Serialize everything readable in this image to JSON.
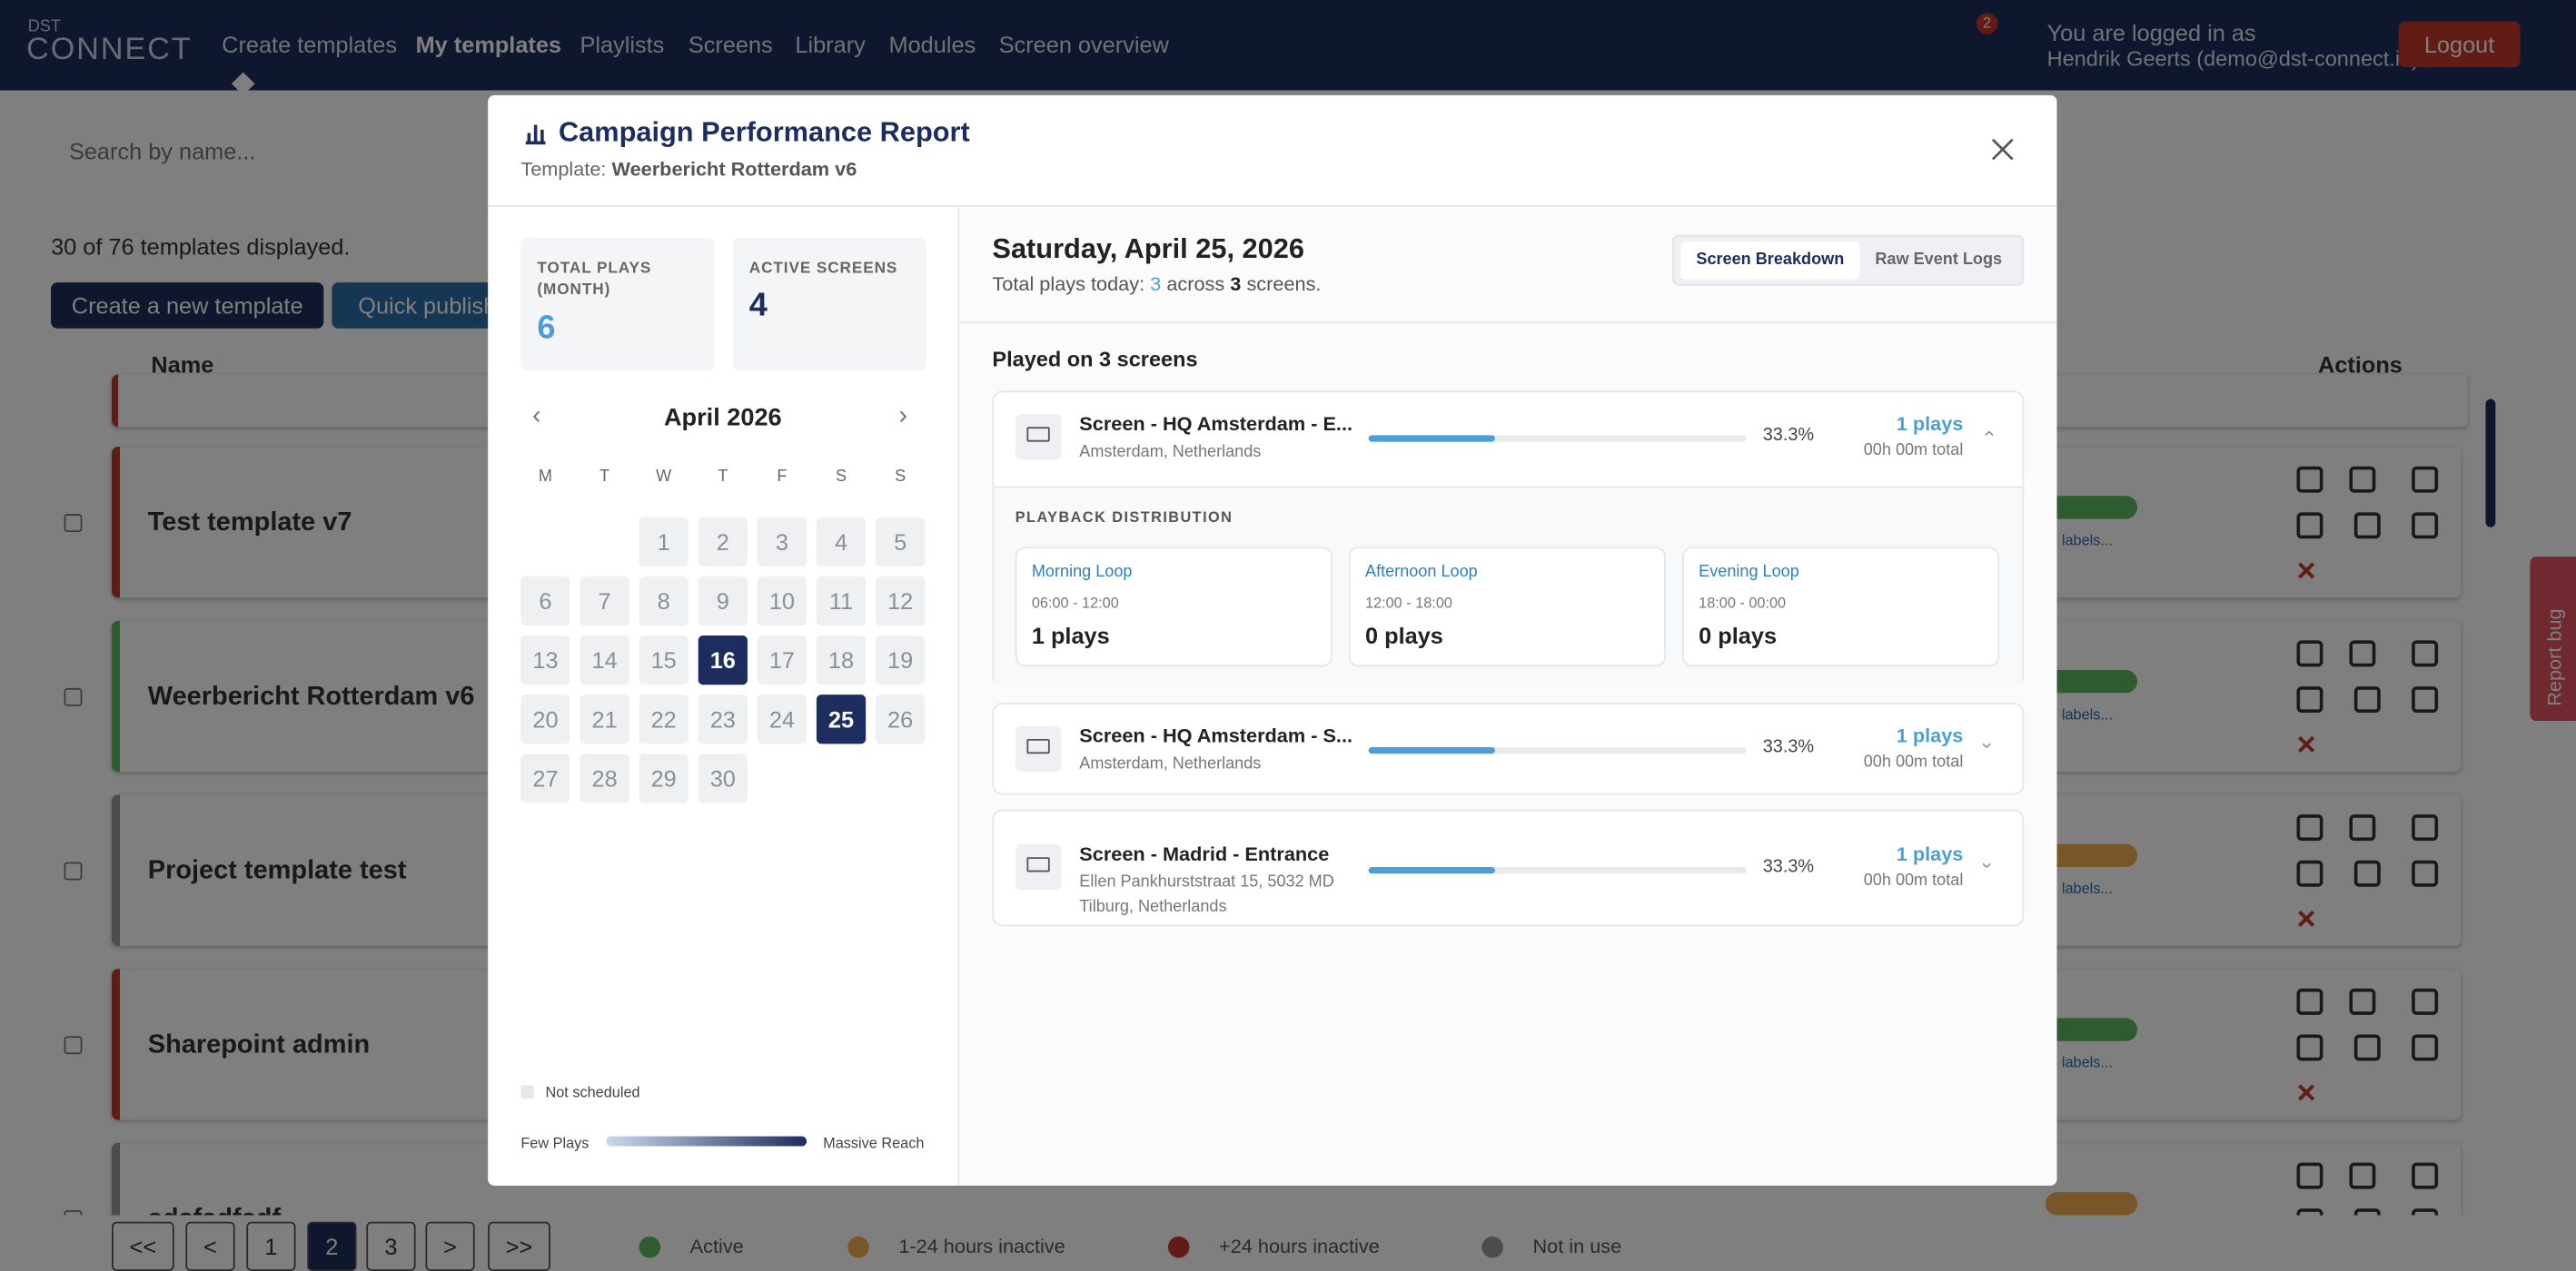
{
  "nav": {
    "logo_top": "DST",
    "logo": "CONNECT",
    "links": [
      "Create templates",
      "My templates",
      "Playlists",
      "Screens",
      "Library",
      "Modules",
      "Screen overview"
    ],
    "notifications": "2",
    "login_line1": "You are logged in as",
    "login_line2": "Hendrik Geerts (demo@dst-connect.io)",
    "logout": "Logout"
  },
  "background": {
    "search_placeholder": "Search by name...",
    "count_text": "30 of 76 templates displayed.",
    "create_button": "Create a new template",
    "quick_publish": "Quick publish",
    "name_header": "Name",
    "actions_header": "Actions",
    "rows": [
      {
        "name": "Test template v7",
        "color": "#c0392b"
      },
      {
        "name": "Weerbericht Rotterdam v6",
        "color": "#5cb85c"
      },
      {
        "name": "Project template test",
        "color": "#999999"
      },
      {
        "name": "Sharepoint admin",
        "color": "#c0392b"
      },
      {
        "name": "sdsfsdfsdf",
        "color": "#999999"
      }
    ],
    "tag_text": "labels...",
    "pagination": [
      "<<",
      "<",
      "1",
      "2",
      "3",
      ">",
      ">>"
    ],
    "legend": [
      {
        "label": "Active",
        "color": "#5cb85c"
      },
      {
        "label": "1-24 hours inactive",
        "color": "#f0ad4e"
      },
      {
        "label": "+24 hours inactive",
        "color": "#c0392b"
      },
      {
        "label": "Not in use",
        "color": "#999999"
      }
    ],
    "report_bug": "Report bug"
  },
  "modal": {
    "title": "Campaign Performance Report",
    "template_label": "Template:",
    "template_name": "Weerbericht Rotterdam v6",
    "stats": [
      {
        "label": "TOTAL PLAYS (MONTH)",
        "value": "6"
      },
      {
        "label": "ACTIVE SCREENS",
        "value": "4"
      }
    ],
    "calendar": {
      "month": "April 2026",
      "weekdays": [
        "M",
        "T",
        "W",
        "T",
        "F",
        "S",
        "S"
      ],
      "days": [
        null,
        null,
        1,
        2,
        3,
        4,
        5,
        6,
        7,
        8,
        9,
        10,
        11,
        12,
        13,
        14,
        15,
        16,
        17,
        18,
        19,
        20,
        21,
        22,
        23,
        24,
        25,
        26,
        27,
        28,
        29,
        30
      ],
      "active_days": [
        16,
        25
      ],
      "legend_not_scheduled": "Not scheduled",
      "legend_low": "Few Plays",
      "legend_high": "Massive Reach"
    },
    "date_title": "Saturday, April 25, 2026",
    "summary": {
      "prefix": "Total plays today:",
      "plays": "3",
      "middle": "across",
      "screens": "3",
      "suffix": "screens."
    },
    "tabs": [
      "Screen Breakdown",
      "Raw Event Logs"
    ],
    "section_title": "Played on 3 screens",
    "screens": [
      {
        "name": "Screen - HQ Amsterdam - E...",
        "location": [
          "Amsterdam, Netherlands"
        ],
        "share": 33.3,
        "share_label": "33.3%",
        "plays": "1 plays",
        "total": "00h 00m total"
      },
      {
        "name": "Screen - HQ Amsterdam - S...",
        "location": [
          "Amsterdam, Netherlands"
        ],
        "share": 33.3,
        "share_label": "33.3%",
        "plays": "1 plays",
        "total": "00h 00m total"
      },
      {
        "name": "Screen - Madrid - Entrance",
        "location": [
          "Ellen Pankhurststraat 15, 5032 MD",
          "Tilburg, Netherlands"
        ],
        "share": 33.3,
        "share_label": "33.3%",
        "plays": "1 plays",
        "total": "00h 00m total"
      }
    ],
    "distribution_title": "PLAYBACK DISTRIBUTION",
    "loops": [
      {
        "name": "Morning Loop",
        "time": "06:00 - 12:00",
        "plays": "1 plays"
      },
      {
        "name": "Afternoon Loop",
        "time": "12:00 - 18:00",
        "plays": "0 plays"
      },
      {
        "name": "Evening Loop",
        "time": "18:00 - 00:00",
        "plays": "0 plays"
      }
    ]
  }
}
